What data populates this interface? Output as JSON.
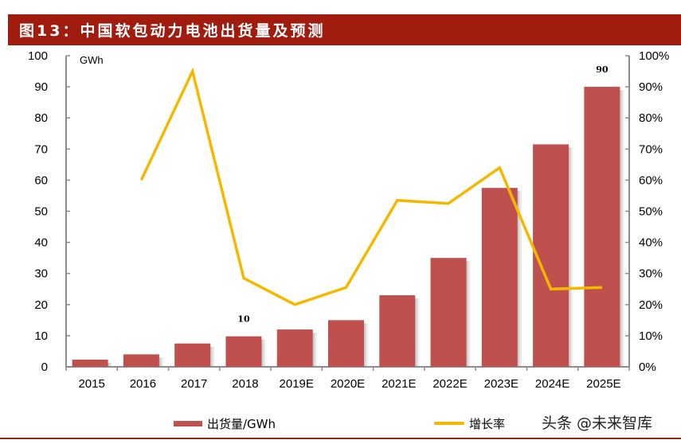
{
  "header": {
    "title": "图13：中国软包动力电池出货量及预测"
  },
  "chart_data": {
    "type": "bar+line",
    "title": "图13：中国软包动力电池出货量及预测",
    "categories": [
      "2015",
      "2016",
      "2017",
      "2018",
      "2019E",
      "2020E",
      "2021E",
      "2022E",
      "2023E",
      "2024E",
      "2025E"
    ],
    "series": [
      {
        "name": "出货量/GWh",
        "type": "bar",
        "axis": "left",
        "color": "#c0504d",
        "values": [
          2.3,
          4,
          7.5,
          9.8,
          12,
          15,
          23,
          35,
          57.5,
          71.5,
          90
        ]
      },
      {
        "name": "增长率",
        "type": "line",
        "axis": "right",
        "color": "#f5b800",
        "values": [
          null,
          0.6,
          0.95,
          0.285,
          0.2,
          0.255,
          0.535,
          0.525,
          0.64,
          0.25,
          0.255
        ]
      }
    ],
    "data_labels": [
      {
        "category": "2018",
        "text": "10"
      },
      {
        "category": "2025E",
        "text": "90"
      }
    ],
    "left_axis": {
      "unit_label": "GWh",
      "ylim": [
        0,
        100
      ],
      "ticks": [
        "0",
        "10",
        "20",
        "30",
        "40",
        "50",
        "60",
        "70",
        "80",
        "90",
        "100"
      ]
    },
    "right_axis": {
      "ylim": [
        0,
        1
      ],
      "ticks": [
        "0%",
        "10%",
        "20%",
        "30%",
        "40%",
        "50%",
        "60%",
        "70%",
        "80%",
        "90%",
        "100%"
      ]
    },
    "grid": false,
    "legend_position": "bottom"
  },
  "legend": {
    "bar_label": "出货量/GWh",
    "line_label": "增长率"
  },
  "watermark": "头条 @未来智库",
  "colors": {
    "title_bg": "#a01c0e",
    "bar": "#c0504d",
    "line": "#f5b800",
    "axis": "#8c8c8c"
  }
}
